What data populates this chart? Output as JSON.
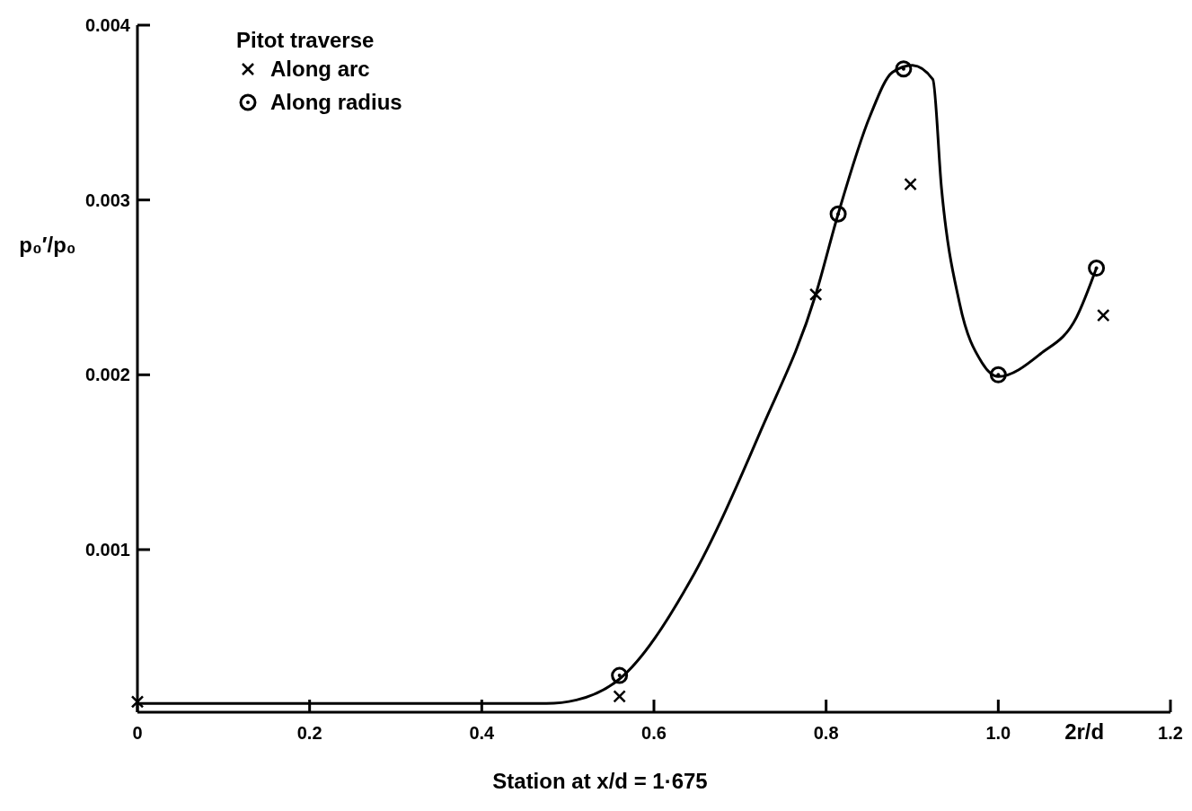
{
  "chart_data": {
    "type": "scatter",
    "xlabel": "Station at x/d = 1·675",
    "ylabel": "p₀′/p₀",
    "legend_title": "Pitot traverse",
    "legend": "top left",
    "grid": false,
    "annotations": [
      "2r/d"
    ],
    "xlim": [
      0,
      1.2
    ],
    "xticks": [
      0,
      0.2,
      0.4,
      0.6,
      0.8,
      {
        "value": 1.0,
        "label": "1.0"
      },
      1.2
    ],
    "ylim": [
      7e-05,
      0.004
    ],
    "yticks": [
      0.001,
      0.002,
      0.003,
      0.004
    ],
    "series": [
      {
        "name": "Along arc",
        "color": "#000000",
        "marker": "cross",
        "x": [
          0,
          0.56,
          0.788,
          0.898,
          1.122
        ],
        "values": [
          0.00013,
          0.00016,
          0.00246,
          0.00309,
          0.00234
        ]
      },
      {
        "name": "Along radius",
        "color": "#000000",
        "marker": "circle",
        "x": [
          0.56,
          0.814,
          0.89,
          1.0,
          1.114
        ],
        "values": [
          0.00028,
          0.00292,
          0.00375,
          0.002,
          0.00261
        ]
      },
      {
        "type": "line",
        "color": "#000000",
        "marker": "none",
        "x": [
          0,
          0.3,
          0.475,
          0.51,
          0.56,
          0.642,
          0.725,
          0.788,
          0.814,
          0.851,
          0.877,
          0.9,
          0.924,
          0.934,
          0.955,
          0.981,
          1.0,
          1.049,
          1.091,
          1.114
        ],
        "values": [
          0.00012,
          0.00012,
          0.00012,
          0.00014,
          0.00026,
          0.00082,
          0.00169,
          0.00246,
          0.00292,
          0.00348,
          0.00373,
          0.00377,
          0.00369,
          0.00307,
          0.00241,
          0.00207,
          0.00199,
          0.00212,
          0.00233,
          0.00261
        ]
      }
    ]
  }
}
